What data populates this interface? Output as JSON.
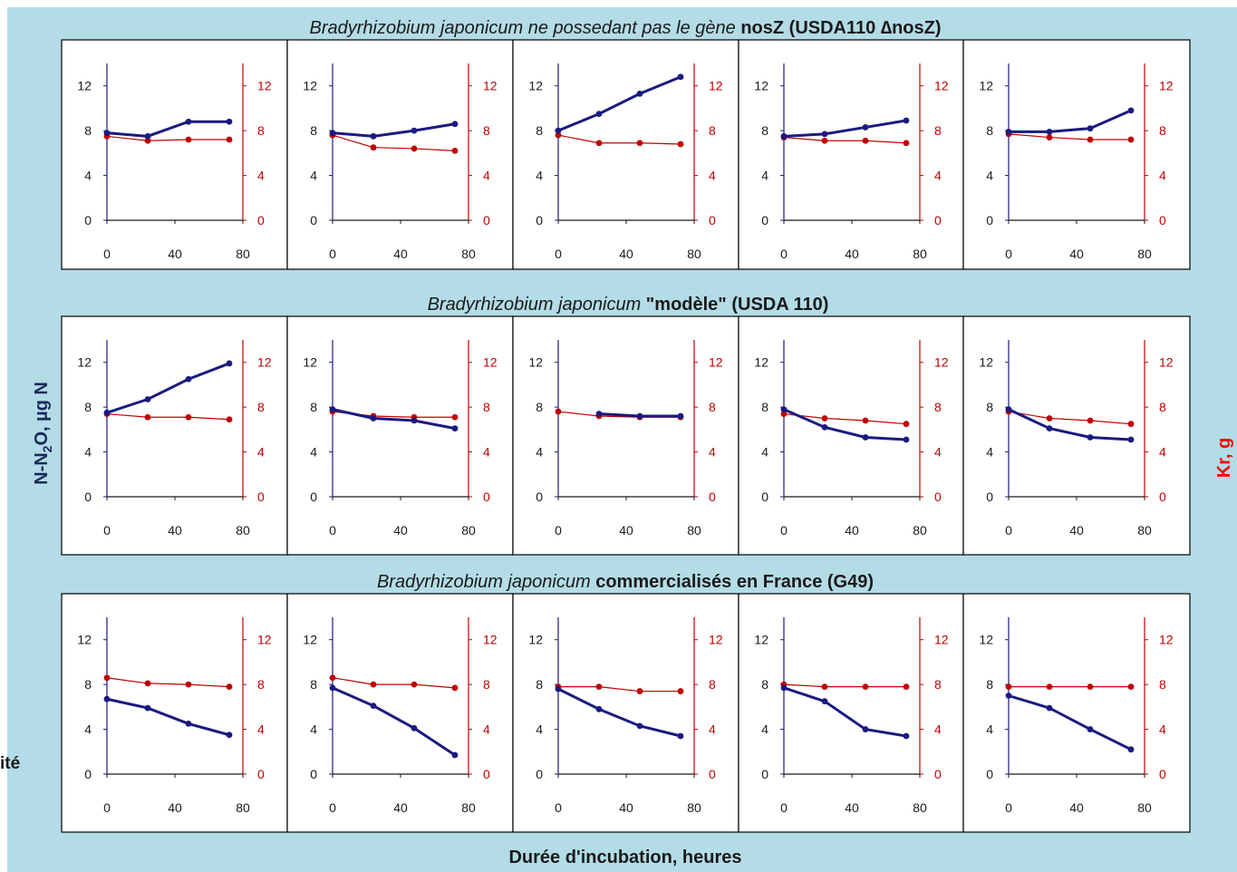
{
  "edge_text": "ité",
  "ylabel_left": "N-N",
  "ylabel_left_sub": "2",
  "ylabel_left_rest": "O, µg N",
  "ylabel_right": "Kr, g",
  "xlabel": "Durée d'incubation, heures",
  "row_titles": [
    {
      "italic": "Bradyrhizobium japonicum ne possedant pas le gène ",
      "bold": "nosZ (USDA110 ∆nosZ)"
    },
    {
      "italic": "Bradyrhizobium japonicum ",
      "bold": " \"modèle\"  (USDA 110)"
    },
    {
      "italic": "Bradyrhizobium japonicum ",
      "bold": "  commercialisés en France (G49)"
    }
  ],
  "colors": {
    "n2o": "#1a1a80",
    "kr": "#c00000",
    "bg": "#b3dce6"
  },
  "chart_data": {
    "type": "line",
    "layout": "small multiples, 3 rows x 5 columns",
    "xlabel": "Durée d'incubation, heures",
    "ylabel_left": "N-N2O, µg N",
    "ylabel_right": "Kr, g",
    "x_ticks": [
      0,
      40,
      80
    ],
    "xlim": [
      0,
      80
    ],
    "y_ticks": [
      0,
      4,
      8,
      12
    ],
    "ylim": [
      0,
      14
    ],
    "x": [
      0,
      24,
      48,
      72
    ],
    "series_colors": {
      "left_axis": "#1a1a80",
      "right_axis": "#c00000"
    },
    "rows": [
      {
        "title": "Bradyrhizobium japonicum ne possedant pas le gène nosZ (USDA110 ∆nosZ)",
        "panels": [
          {
            "n2o": [
              7.8,
              7.5,
              8.8,
              8.8
            ],
            "kr": [
              7.5,
              7.1,
              7.2,
              7.2
            ]
          },
          {
            "n2o": [
              7.8,
              7.5,
              8.0,
              8.6
            ],
            "kr": [
              7.6,
              6.5,
              6.4,
              6.2
            ]
          },
          {
            "n2o": [
              8.0,
              9.5,
              11.3,
              12.8
            ],
            "kr": [
              7.6,
              6.9,
              6.9,
              6.8
            ]
          },
          {
            "n2o": [
              7.5,
              7.7,
              8.3,
              8.9
            ],
            "kr": [
              7.4,
              7.1,
              7.1,
              6.9
            ]
          },
          {
            "n2o": [
              7.9,
              7.9,
              8.2,
              9.8
            ],
            "kr": [
              7.7,
              7.4,
              7.2,
              7.2
            ]
          }
        ]
      },
      {
        "title": "Bradyrhizobium japonicum \"modèle\" (USDA 110)",
        "panels": [
          {
            "n2o": [
              7.5,
              8.7,
              10.5,
              11.9
            ],
            "kr": [
              7.4,
              7.1,
              7.1,
              6.9
            ]
          },
          {
            "n2o": [
              7.8,
              7.0,
              6.8,
              6.1
            ],
            "kr": [
              7.6,
              7.2,
              7.1,
              7.1
            ]
          },
          {
            "n2o": [
              null,
              7.4,
              7.2,
              7.2
            ],
            "kr": [
              7.6,
              7.2,
              7.1,
              7.1
            ]
          },
          {
            "n2o": [
              7.8,
              6.2,
              5.3,
              5.1
            ],
            "kr": [
              7.4,
              7.0,
              6.8,
              6.5
            ]
          },
          {
            "n2o": [
              7.8,
              6.1,
              5.3,
              5.1
            ],
            "kr": [
              7.6,
              7.0,
              6.8,
              6.5
            ]
          }
        ]
      },
      {
        "title": "Bradyrhizobium japonicum commercialisés en France (G49)",
        "panels": [
          {
            "n2o": [
              6.7,
              5.9,
              4.5,
              3.5
            ],
            "kr": [
              8.6,
              8.1,
              8.0,
              7.8
            ]
          },
          {
            "n2o": [
              7.7,
              6.1,
              4.1,
              1.7
            ],
            "kr": [
              8.6,
              8.0,
              8.0,
              7.7
            ]
          },
          {
            "n2o": [
              7.6,
              5.8,
              4.3,
              3.4
            ],
            "kr": [
              7.8,
              7.8,
              7.4,
              7.4
            ]
          },
          {
            "n2o": [
              7.7,
              6.5,
              4.0,
              3.4
            ],
            "kr": [
              8.0,
              7.8,
              7.8,
              7.8
            ]
          },
          {
            "n2o": [
              7.0,
              5.9,
              4.0,
              2.2
            ],
            "kr": [
              7.8,
              7.8,
              7.8,
              7.8
            ]
          }
        ]
      }
    ]
  }
}
